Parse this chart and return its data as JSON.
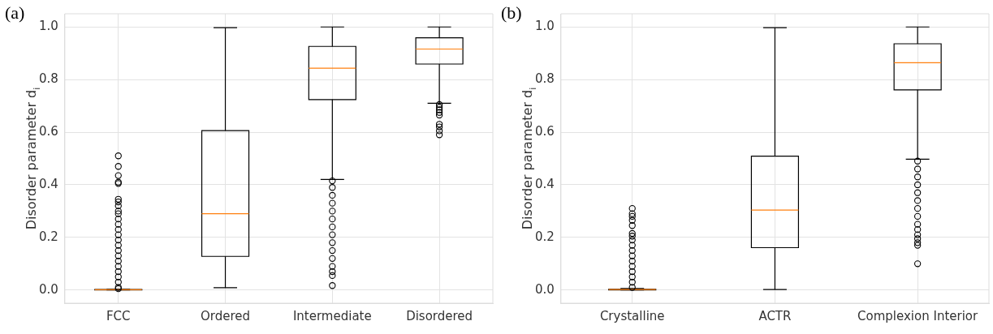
{
  "chart_data": [
    {
      "type": "box",
      "title": "(a)",
      "ylabel": "Disorder parameter d$_{i}$",
      "categories": [
        "FCC",
        "Ordered",
        "Intermediate",
        "Disordered"
      ],
      "boxes": [
        {
          "low": 0,
          "q1": 0,
          "median": 0.001,
          "q3": 0.002,
          "high": 0.003,
          "outliers": [
            0.51,
            0.47,
            0.435,
            0.41,
            0.405,
            0.345,
            0.335,
            0.32,
            0.3,
            0.29,
            0.27,
            0.25,
            0.23,
            0.21,
            0.19,
            0.17,
            0.15,
            0.13,
            0.11,
            0.09,
            0.07,
            0.05,
            0.03,
            0.01,
            0.005
          ]
        },
        {
          "low": 0.009,
          "q1": 0.128,
          "median": 0.29,
          "q3": 0.606,
          "high": 0.997
        },
        {
          "low": 0.42,
          "q1": 0.724,
          "median": 0.843,
          "q3": 0.926,
          "high": 1.0,
          "outliers": [
            0.415,
            0.39,
            0.36,
            0.33,
            0.3,
            0.27,
            0.24,
            0.21,
            0.18,
            0.15,
            0.12,
            0.09,
            0.07,
            0.055,
            0.017
          ]
        },
        {
          "low": 0.71,
          "q1": 0.859,
          "median": 0.916,
          "q3": 0.959,
          "high": 1.0,
          "outliers": [
            0.705,
            0.695,
            0.685,
            0.675,
            0.665,
            0.63,
            0.62,
            0.605,
            0.59
          ]
        }
      ],
      "ylim": [
        -0.05,
        1.05
      ],
      "yticks": [
        {
          "value": 0,
          "label": "0.0"
        },
        {
          "value": 0.2,
          "label": "0.2"
        },
        {
          "value": 0.4,
          "label": "0.4"
        },
        {
          "value": 0.6,
          "label": "0.6"
        },
        {
          "value": 0.8,
          "label": "0.8"
        },
        {
          "value": 1,
          "label": "1.0"
        }
      ],
      "grid": true
    },
    {
      "type": "box",
      "title": "(b)",
      "ylabel": "Disorder parameter d$_{i}$",
      "categories": [
        "Crystalline",
        "ACTR",
        "Complexion Interior"
      ],
      "boxes": [
        {
          "low": 0,
          "q1": 0,
          "median": 0.002,
          "q3": 0.003,
          "high": 0.006,
          "outliers": [
            0.31,
            0.29,
            0.28,
            0.265,
            0.245,
            0.215,
            0.205,
            0.19,
            0.17,
            0.15,
            0.13,
            0.11,
            0.09,
            0.07,
            0.05,
            0.03,
            0.01
          ]
        },
        {
          "low": 0.002,
          "q1": 0.161,
          "median": 0.304,
          "q3": 0.509,
          "high": 0.997
        },
        {
          "low": 0.497,
          "q1": 0.761,
          "median": 0.864,
          "q3": 0.936,
          "high": 1.0,
          "outliers": [
            0.49,
            0.46,
            0.43,
            0.4,
            0.37,
            0.34,
            0.31,
            0.28,
            0.25,
            0.23,
            0.21,
            0.195,
            0.18,
            0.17,
            0.1
          ]
        }
      ],
      "ylim": [
        -0.05,
        1.05
      ],
      "yticks": [
        {
          "value": 0,
          "label": "0.0"
        },
        {
          "value": 0.2,
          "label": "0.2"
        },
        {
          "value": 0.4,
          "label": "0.4"
        },
        {
          "value": 0.6,
          "label": "0.6"
        },
        {
          "value": 0.8,
          "label": "0.8"
        },
        {
          "value": 1,
          "label": "1.0"
        }
      ],
      "grid": true
    }
  ]
}
